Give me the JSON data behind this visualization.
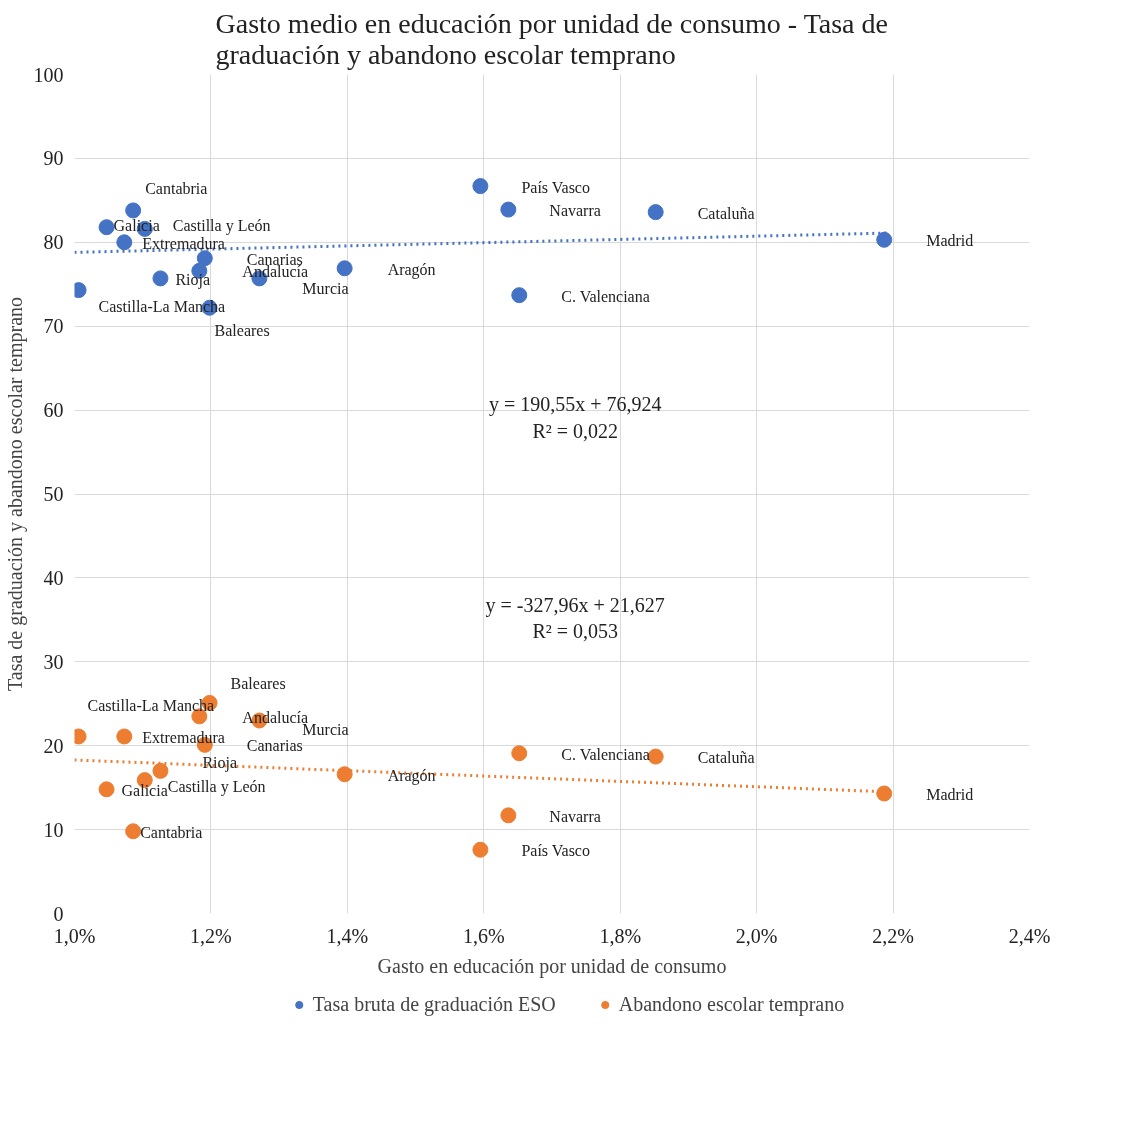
{
  "chart_data": {
    "type": "scatter",
    "title": "Gasto medio en educación por unidad de consumo - Tasa de graduación y abandono escolar temprano",
    "xlabel": "Gasto en educación por unidad de consumo",
    "ylabel": "Tasa de graduación y abandono escolar temprano",
    "xlim": [
      1.0,
      2.4
    ],
    "ylim": [
      0,
      100
    ],
    "xticks": [
      {
        "value": 1.0,
        "label": "1,0%"
      },
      {
        "value": 1.2,
        "label": "1,2%"
      },
      {
        "value": 1.4,
        "label": "1,4%"
      },
      {
        "value": 1.6,
        "label": "1,6%"
      },
      {
        "value": 1.8,
        "label": "1,8%"
      },
      {
        "value": 2.0,
        "label": "2,0%"
      },
      {
        "value": 2.2,
        "label": "2,2%"
      },
      {
        "value": 2.4,
        "label": "2,4%"
      }
    ],
    "yticks": [
      0,
      10,
      20,
      30,
      40,
      50,
      60,
      70,
      80,
      90,
      100
    ],
    "grid": true,
    "legend": "bottom",
    "marker": "circle",
    "series": [
      {
        "name": "Tasa bruta de graduación ESO",
        "color": "#4472c4",
        "x": [
          1.006,
          1.047,
          1.086,
          1.103,
          1.073,
          1.126,
          1.191,
          1.183,
          1.198,
          1.271,
          1.396,
          1.595,
          1.636,
          1.652,
          1.852,
          2.187
        ],
        "values": [
          74.3,
          81.8,
          83.8,
          81.6,
          80.0,
          75.7,
          78.1,
          76.6,
          72.2,
          75.7,
          76.9,
          86.7,
          83.9,
          73.7,
          83.6,
          80.3
        ]
      },
      {
        "name": "Abandono escolar temprano",
        "color": "#ed7d31",
        "x": [
          1.006,
          1.047,
          1.086,
          1.103,
          1.073,
          1.126,
          1.191,
          1.183,
          1.198,
          1.271,
          1.396,
          1.595,
          1.636,
          1.652,
          1.852,
          2.187
        ],
        "values": [
          21.1,
          14.8,
          9.8,
          15.9,
          21.1,
          17.0,
          20.1,
          23.5,
          25.1,
          23.0,
          16.6,
          7.6,
          11.7,
          19.1,
          18.7,
          14.3
        ]
      },
      {
        "color": "#4472c4",
        "type": "line",
        "marker": "none",
        "line_style": "dotted",
        "x": [
          1.0,
          2.19
        ],
        "values": [
          78.8,
          81.1
        ]
      },
      {
        "color": "#ed7d31",
        "type": "line",
        "marker": "none",
        "line_style": "dotted",
        "x": [
          1.0,
          2.19
        ],
        "values": [
          18.3,
          14.5
        ]
      }
    ],
    "annotations": [
      {
        "text": "Castilla-La Mancha",
        "x": 1.006,
        "y": 74.3
      },
      {
        "text": "Galicia",
        "x": 1.047,
        "y": 81.8
      },
      {
        "text": "Cantabria",
        "x": 1.086,
        "y": 83.8
      },
      {
        "text": "Castilla y León",
        "x": 1.103,
        "y": 81.6
      },
      {
        "text": "Extremadura",
        "x": 1.073,
        "y": 80.0
      },
      {
        "text": "Rioja",
        "x": 1.126,
        "y": 75.7
      },
      {
        "text": "Canarias",
        "x": 1.191,
        "y": 78.1
      },
      {
        "text": "Andalucía",
        "x": 1.183,
        "y": 76.6
      },
      {
        "text": "Baleares",
        "x": 1.198,
        "y": 72.2
      },
      {
        "text": "Murcia",
        "x": 1.271,
        "y": 75.7
      },
      {
        "text": "Aragón",
        "x": 1.396,
        "y": 76.9
      },
      {
        "text": "País Vasco",
        "x": 1.595,
        "y": 86.7
      },
      {
        "text": "Navarra",
        "x": 1.636,
        "y": 83.9
      },
      {
        "text": "C. Valenciana",
        "x": 1.652,
        "y": 73.7
      },
      {
        "text": "Cataluña",
        "x": 1.852,
        "y": 83.6
      },
      {
        "text": "Madrid",
        "x": 2.187,
        "y": 80.3
      },
      {
        "text": "Castilla-La Mancha",
        "x": 1.006,
        "y": 21.1
      },
      {
        "text": "Galicia",
        "x": 1.047,
        "y": 14.8
      },
      {
        "text": "Cantabria",
        "x": 1.086,
        "y": 9.8
      },
      {
        "text": "Castilla y León",
        "x": 1.103,
        "y": 15.9
      },
      {
        "text": "Extremadura",
        "x": 1.073,
        "y": 21.1
      },
      {
        "text": "Rioja",
        "x": 1.126,
        "y": 17.0
      },
      {
        "text": "Canarias",
        "x": 1.191,
        "y": 20.1
      },
      {
        "text": "Andalucía",
        "x": 1.183,
        "y": 23.5
      },
      {
        "text": "Baleares",
        "x": 1.198,
        "y": 25.1
      },
      {
        "text": "Murcia",
        "x": 1.271,
        "y": 23.0
      },
      {
        "text": "Aragón",
        "x": 1.396,
        "y": 16.6
      },
      {
        "text": "País Vasco",
        "x": 1.595,
        "y": 7.6
      },
      {
        "text": "Navarra",
        "x": 1.636,
        "y": 11.7
      },
      {
        "text": "C. Valenciana",
        "x": 1.652,
        "y": 19.1
      },
      {
        "text": "Cataluña",
        "x": 1.852,
        "y": 18.7
      },
      {
        "text": "Madrid",
        "x": 2.187,
        "y": 14.3
      },
      "y = 190,55x + 76,924\nR² = 0,022",
      "y = -327,96x + 21,627\nR² = 0,053"
    ]
  }
}
